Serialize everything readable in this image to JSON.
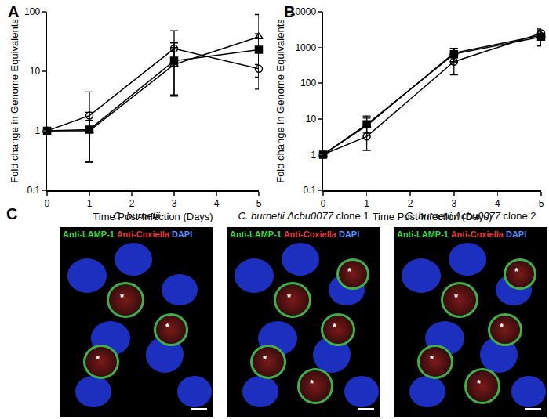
{
  "chart_data": [
    {
      "type": "line",
      "title": "A",
      "x_label": "Time Post-Infection (Days)",
      "y_label": "Fold change in Genome Equivalents",
      "log": "y",
      "grid": false,
      "x": [
        0,
        1,
        3,
        5
      ],
      "xlim": [
        0,
        5
      ],
      "xticks": [
        0,
        1,
        2,
        3,
        4,
        5
      ],
      "ylim": [
        0.1,
        100
      ],
      "yticks": [
        0.1,
        1,
        10,
        100
      ],
      "series": [
        {
          "color": "#000000",
          "marker": "circle-open",
          "values": [
            1,
            1.8,
            24,
            11
          ],
          "error_plus": [
            0,
            2.7,
            24,
            10
          ],
          "error_minus": [
            0,
            1.5,
            10,
            6
          ]
        },
        {
          "color": "#000000",
          "marker": "square",
          "values": [
            1,
            1.05,
            15,
            23
          ],
          "error_plus": [
            0,
            1,
            15,
            20
          ],
          "error_minus": [
            0,
            0.75,
            11,
            15
          ]
        },
        {
          "color": "#000000",
          "marker": "triangle-up-open",
          "values": [
            1,
            1.0,
            13,
            38
          ],
          "error_plus": [
            0,
            0.5,
            12,
            52
          ],
          "error_minus": [
            0,
            0.7,
            9.2,
            25
          ]
        }
      ]
    },
    {
      "type": "line",
      "title": "B",
      "x_label": "Time Post Infection (Days)",
      "y_label": "Fold change in Genome Equivalents",
      "log": "y",
      "grid": false,
      "x": [
        0,
        1,
        3,
        5
      ],
      "xlim": [
        0,
        5
      ],
      "xticks": [
        0,
        1,
        2,
        3,
        4,
        5
      ],
      "ylim": [
        0.1,
        10000
      ],
      "yticks": [
        0.1,
        1,
        10,
        100,
        1000,
        10000
      ],
      "series": [
        {
          "color": "#000000",
          "marker": "circle-open",
          "values": [
            1,
            3.2,
            400,
            2500
          ],
          "error_plus": [
            0,
            2.5,
            250,
            800
          ],
          "error_minus": [
            0,
            1.9,
            230,
            900
          ]
        },
        {
          "color": "#000000",
          "marker": "square",
          "values": [
            1,
            7,
            650,
            2000
          ],
          "error_plus": [
            0,
            5,
            300,
            800
          ],
          "error_minus": [
            0,
            3,
            250,
            900
          ]
        },
        {
          "color": "#000000",
          "marker": "triangle-up-open",
          "values": [
            1,
            6.5,
            700,
            2200
          ],
          "error_plus": [
            0,
            4,
            250,
            900
          ],
          "error_minus": [
            0,
            3,
            300,
            1100
          ]
        }
      ]
    }
  ],
  "image_panel": {
    "title": "C",
    "images": [
      {
        "title": "C. burnetii",
        "stains": [
          {
            "text": "Anti-LAMP-1",
            "color": "#3fd24a"
          },
          {
            "text": "Anti-Coxiella",
            "color": "#e23a3a"
          },
          {
            "text": "DAPI",
            "color": "#5a8cff"
          }
        ],
        "annotations": [
          "*",
          "*",
          "*"
        ]
      },
      {
        "title": "C. burnetii Δcbu0077 clone 1",
        "stains": [
          {
            "text": "Anti-LAMP-1",
            "color": "#3fd24a"
          },
          {
            "text": "Anti-Coxiella",
            "color": "#e23a3a"
          },
          {
            "text": "DAPI",
            "color": "#5a8cff"
          }
        ],
        "annotations": [
          "*",
          "*",
          "*",
          "*",
          "*"
        ]
      },
      {
        "title": "C. burnetii Δcbu0077 clone 2",
        "stains": [
          {
            "text": "Anti-LAMP-1",
            "color": "#3fd24a"
          },
          {
            "text": "Anti-Coxiella",
            "color": "#e23a3a"
          },
          {
            "text": "DAPI",
            "color": "#5a8cff"
          }
        ],
        "annotations": [
          "*",
          "*",
          "*",
          "*",
          "*"
        ]
      }
    ]
  }
}
